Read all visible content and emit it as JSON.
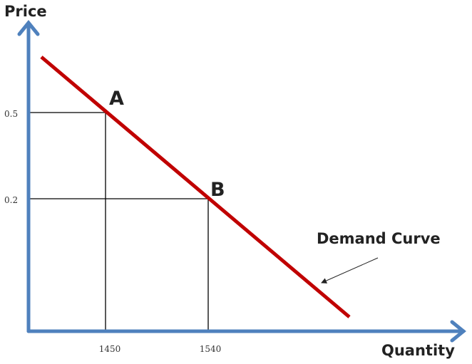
{
  "axes": {
    "y_label": "Price",
    "x_label": "Quantity",
    "y_ticks": [
      "0.5",
      "0.2"
    ],
    "x_ticks": [
      "1450",
      "1540"
    ]
  },
  "points": [
    {
      "label": "A"
    },
    {
      "label": "B"
    }
  ],
  "annotation": "Demand Curve"
}
